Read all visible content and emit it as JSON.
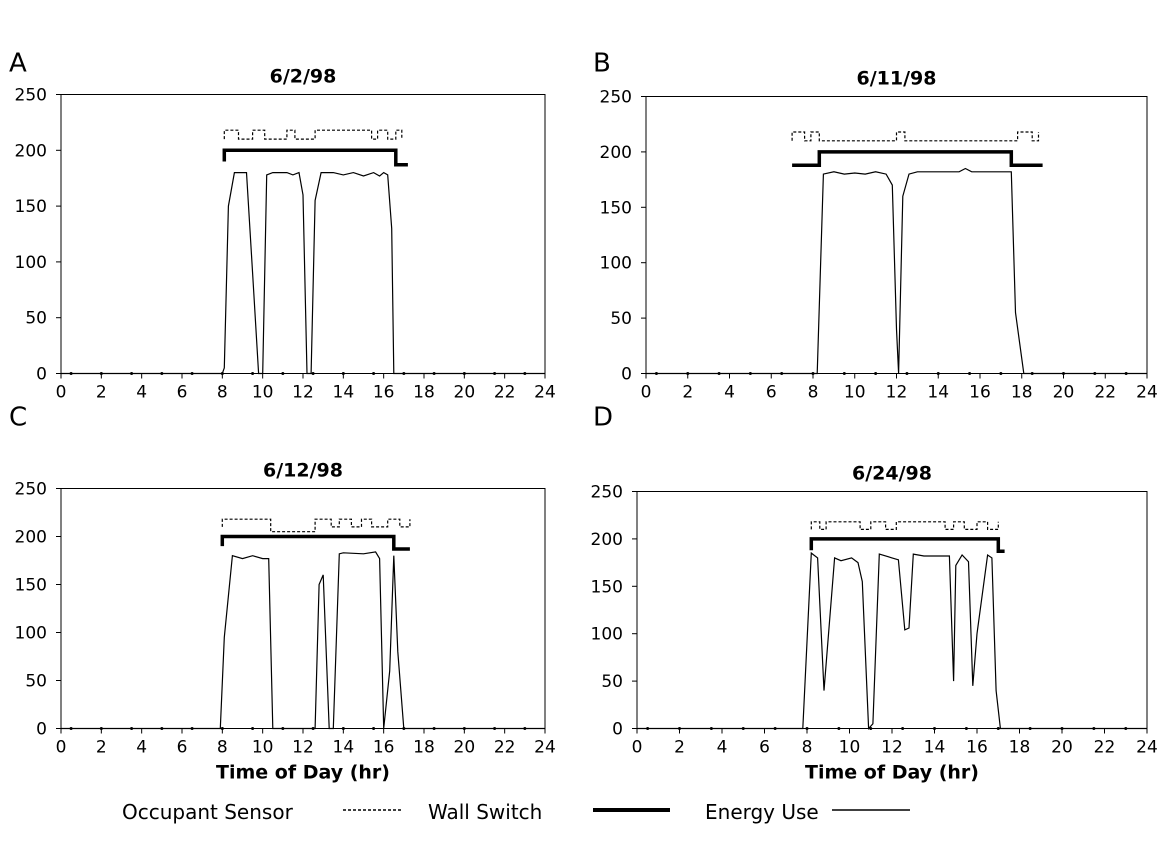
{
  "figure": {
    "y_ticks": [
      "0",
      "50",
      "100",
      "150",
      "200",
      "250"
    ],
    "x_ticks": [
      "0",
      "2",
      "4",
      "6",
      "8",
      "10",
      "12",
      "14",
      "16",
      "18",
      "20",
      "22",
      "24"
    ],
    "xlabel": "Time of Day (hr)"
  },
  "legend": {
    "occupant_sensor": "Occupant Sensor",
    "wall_switch": "Wall Switch",
    "energy_use": "Energy Use"
  },
  "chart_data": [
    {
      "type": "line",
      "panel": "A",
      "title": "6/2/98",
      "xlabel": "",
      "ylabel": "",
      "xlim": [
        0,
        24
      ],
      "ylim": [
        0,
        250
      ],
      "series": [
        {
          "name": "Occupant Sensor",
          "style": "dotted",
          "x": [
            8.1,
            8.1,
            8.8,
            8.8,
            9.5,
            9.5,
            10.1,
            10.1,
            11.2,
            11.2,
            11.6,
            11.6,
            12.6,
            12.6,
            15.4,
            15.4,
            15.7,
            15.7,
            16.2,
            16.2,
            16.6,
            16.6,
            16.9,
            16.9
          ],
          "y": [
            210,
            218,
            218,
            210,
            210,
            218,
            218,
            210,
            210,
            218,
            218,
            210,
            210,
            218,
            218,
            210,
            210,
            218,
            218,
            210,
            210,
            218,
            218,
            210
          ]
        },
        {
          "name": "Wall Switch",
          "style": "thick",
          "x": [
            8.1,
            8.1,
            16.6,
            16.6,
            17.2
          ],
          "y": [
            190,
            200,
            200,
            187,
            187
          ]
        },
        {
          "name": "Energy Use",
          "style": "solid",
          "x": [
            0,
            8.0,
            8.1,
            8.3,
            8.6,
            9.2,
            9.5,
            9.8,
            10.0,
            10.2,
            10.5,
            11.2,
            11.5,
            11.8,
            12.0,
            12.2,
            12.4,
            12.6,
            12.9,
            13.5,
            14.0,
            14.5,
            15.0,
            15.5,
            15.8,
            16.0,
            16.2,
            16.4,
            16.5,
            24
          ],
          "y": [
            0,
            0,
            5,
            150,
            180,
            180,
            90,
            0,
            0,
            178,
            180,
            180,
            178,
            180,
            160,
            0,
            0,
            155,
            180,
            180,
            178,
            180,
            177,
            180,
            177,
            180,
            178,
            130,
            0,
            0
          ]
        }
      ]
    },
    {
      "type": "line",
      "panel": "B",
      "title": "6/11/98",
      "xlabel": "",
      "ylabel": "",
      "xlim": [
        0,
        24
      ],
      "ylim": [
        0,
        250
      ],
      "series": [
        {
          "name": "Occupant Sensor",
          "style": "dotted",
          "x": [
            7.0,
            7.0,
            7.6,
            7.6,
            7.9,
            7.9,
            8.3,
            8.3,
            12.0,
            12.0,
            12.4,
            12.4,
            17.8,
            17.8,
            18.5,
            18.5,
            18.8,
            18.8
          ],
          "y": [
            210,
            218,
            218,
            210,
            210,
            218,
            218,
            210,
            210,
            218,
            218,
            210,
            210,
            218,
            218,
            210,
            210,
            218
          ]
        },
        {
          "name": "Wall Switch",
          "style": "thick",
          "x": [
            7.0,
            8.3,
            8.3,
            17.5,
            17.5,
            19.0
          ],
          "y": [
            188,
            188,
            200,
            200,
            188,
            188
          ]
        },
        {
          "name": "Energy Use",
          "style": "solid",
          "x": [
            0,
            8.2,
            8.5,
            9.0,
            9.5,
            10.0,
            10.5,
            11.0,
            11.5,
            11.8,
            12.0,
            12.1,
            12.3,
            12.6,
            13.0,
            14.0,
            15.0,
            15.3,
            15.6,
            16.0,
            17.0,
            17.5,
            17.7,
            18.1,
            24
          ],
          "y": [
            0,
            0,
            180,
            182,
            180,
            181,
            180,
            182,
            180,
            170,
            40,
            0,
            160,
            180,
            182,
            182,
            182,
            185,
            182,
            182,
            182,
            182,
            55,
            0,
            0
          ]
        }
      ]
    },
    {
      "type": "line",
      "panel": "C",
      "title": "6/12/98",
      "xlabel": "Time of Day (hr)",
      "ylabel": "",
      "xlim": [
        0,
        24
      ],
      "ylim": [
        0,
        250
      ],
      "series": [
        {
          "name": "Occupant Sensor",
          "style": "dotted",
          "x": [
            8.0,
            8.0,
            10.4,
            10.4,
            12.6,
            12.6,
            13.4,
            13.4,
            13.8,
            13.8,
            14.4,
            14.4,
            14.9,
            14.9,
            15.4,
            15.4,
            16.2,
            16.2,
            16.8,
            16.8,
            17.3,
            17.3
          ],
          "y": [
            210,
            218,
            218,
            205,
            205,
            218,
            218,
            210,
            210,
            218,
            218,
            210,
            210,
            218,
            218,
            210,
            210,
            218,
            218,
            210,
            210,
            218
          ]
        },
        {
          "name": "Wall Switch",
          "style": "thick",
          "x": [
            8.0,
            8.0,
            16.5,
            16.5,
            17.3
          ],
          "y": [
            190,
            200,
            200,
            187,
            187
          ]
        },
        {
          "name": "Energy Use",
          "style": "solid",
          "x": [
            0,
            7.9,
            8.1,
            8.5,
            9.0,
            9.5,
            10.0,
            10.3,
            10.5,
            12.6,
            12.8,
            13.0,
            13.3,
            13.5,
            13.8,
            14.0,
            15.0,
            15.6,
            15.8,
            16.0,
            16.3,
            16.5,
            16.7,
            17.0,
            24
          ],
          "y": [
            0,
            0,
            95,
            180,
            177,
            180,
            177,
            177,
            0,
            0,
            150,
            160,
            0,
            0,
            182,
            183,
            182,
            184,
            177,
            0,
            60,
            180,
            80,
            0,
            0
          ]
        }
      ]
    },
    {
      "type": "line",
      "panel": "D",
      "title": "6/24/98",
      "xlabel": "Time of Day (hr)",
      "ylabel": "",
      "xlim": [
        0,
        24
      ],
      "ylim": [
        0,
        250
      ],
      "series": [
        {
          "name": "Occupant Sensor",
          "style": "dotted",
          "x": [
            8.2,
            8.2,
            8.6,
            8.6,
            8.9,
            8.9,
            10.5,
            10.5,
            11.0,
            11.0,
            11.7,
            11.7,
            12.2,
            12.2,
            14.5,
            14.5,
            14.9,
            14.9,
            15.4,
            15.4,
            16.0,
            16.0,
            16.5,
            16.5,
            17.0,
            17.0
          ],
          "y": [
            210,
            218,
            218,
            210,
            210,
            218,
            218,
            210,
            210,
            218,
            218,
            210,
            210,
            218,
            218,
            210,
            210,
            218,
            218,
            210,
            210,
            218,
            218,
            210,
            210,
            218
          ]
        },
        {
          "name": "Wall Switch",
          "style": "thick",
          "x": [
            8.2,
            8.2,
            17.0,
            17.0,
            17.3
          ],
          "y": [
            188,
            200,
            200,
            187,
            187
          ]
        },
        {
          "name": "Energy Use",
          "style": "solid",
          "x": [
            0,
            7.8,
            8.2,
            8.5,
            8.8,
            9.3,
            9.6,
            10.1,
            10.4,
            10.6,
            10.9,
            11.1,
            11.4,
            12.0,
            12.3,
            12.6,
            12.8,
            13.0,
            13.5,
            14.7,
            14.9,
            15.0,
            15.3,
            15.6,
            15.8,
            16.0,
            16.5,
            16.7,
            16.9,
            17.1,
            24
          ],
          "y": [
            0,
            0,
            185,
            180,
            40,
            180,
            177,
            180,
            175,
            155,
            0,
            5,
            184,
            180,
            178,
            104,
            106,
            184,
            182,
            182,
            50,
            172,
            183,
            176,
            45,
            100,
            183,
            180,
            40,
            0,
            0
          ]
        }
      ]
    }
  ]
}
